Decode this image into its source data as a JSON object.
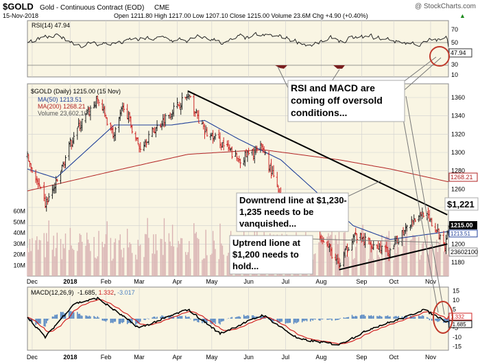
{
  "header": {
    "symbol": "$GOLD",
    "name": "Gold - Continuous Contract (EOD)",
    "exchange": "CME",
    "watermark": "@ StockCharts.com",
    "date": "15-Nov-2018",
    "ohlc": "Open 1211.80  High 1217.00  Low 1207.10  Close 1215.00  Volume 23.6M  Chg +4.90 (+0.40%)",
    "ohlc_arrow": "▲"
  },
  "rsi_panel": {
    "label": "RSI(14) 47.94",
    "current": "47.94",
    "levels": [
      "70",
      "50",
      "30",
      "10"
    ]
  },
  "price_panel": {
    "legend_main": "$GOLD (Daily) 1215.00 (15 Nov)",
    "legend_ma50": "MA(50) 1213.51",
    "legend_ma200": "MA(200) 1268.21",
    "legend_volume": "Volume 23,602,100",
    "price_ticks": [
      "1360",
      "1340",
      "1320",
      "1300",
      "1280",
      "1260",
      "1240",
      "1220",
      "1200",
      "1180"
    ],
    "volume_ticks": [
      "60M",
      "50M",
      "40M",
      "30M",
      "20M",
      "10M"
    ],
    "badge_ma200": "1268.21",
    "badge_close": "1215.00",
    "badge_ma50": "1213.51",
    "badge_volume": "23602100"
  },
  "macd_panel": {
    "label_name": "MACD(12,26,9)",
    "label_macd": "-1.685",
    "label_signal": "1.332",
    "label_hist": "-3.017",
    "ticks": [
      "15",
      "10",
      "5",
      "0",
      "-5",
      "-10",
      "-15"
    ],
    "badge_signal": "1.332",
    "badge_macd": "-1.685"
  },
  "annotations": {
    "rsi_macd": "RSI and MACD are coming off oversold conditions...",
    "downtrend": "Downtrend line at $1,230-1,235 needs to be vanquished...",
    "uptrend": "Uptrend lione at $1,200 needs to hold...",
    "price_call": "$1,221"
  },
  "x_axis": [
    "Dec",
    "2018",
    "Feb",
    "Mar",
    "Apr",
    "May",
    "Jun",
    "Jul",
    "Aug",
    "Sep",
    "Oct",
    "Nov"
  ],
  "colors": {
    "up_bar": "#222222",
    "down_bar": "#cc2222",
    "ma50": "#1f3f99",
    "ma200": "#b22222",
    "volume": "#d9b3b3",
    "panel_bg": "#f9f5e3",
    "grid": "#cfcfcf",
    "macd_line": "#000000",
    "signal_line": "#d22222",
    "histogram": "#4a7fc1",
    "rsi_line": "#222222"
  },
  "chart_data": {
    "type": "candlestick",
    "title": "$GOLD Gold - Continuous Contract (EOD) CME",
    "x_range": [
      "2017-11-27",
      "2018-11-16"
    ],
    "ylim": [
      1165,
      1375
    ],
    "price_anchors": [
      {
        "date": "2017-11-27",
        "close": 1295
      },
      {
        "date": "2017-12-12",
        "close": 1243
      },
      {
        "date": "2017-12-21",
        "close": 1265
      },
      {
        "date": "2018-01-05",
        "close": 1320
      },
      {
        "date": "2018-01-25",
        "close": 1358
      },
      {
        "date": "2018-02-08",
        "close": 1318
      },
      {
        "date": "2018-02-16",
        "close": 1352
      },
      {
        "date": "2018-03-01",
        "close": 1305
      },
      {
        "date": "2018-03-14",
        "close": 1325
      },
      {
        "date": "2018-03-28",
        "close": 1345
      },
      {
        "date": "2018-04-11",
        "close": 1362
      },
      {
        "date": "2018-04-25",
        "close": 1322
      },
      {
        "date": "2018-05-08",
        "close": 1312
      },
      {
        "date": "2018-05-23",
        "close": 1292
      },
      {
        "date": "2018-06-13",
        "close": 1305
      },
      {
        "date": "2018-06-28",
        "close": 1250
      },
      {
        "date": "2018-07-13",
        "close": 1240
      },
      {
        "date": "2018-07-27",
        "close": 1222
      },
      {
        "date": "2018-08-16",
        "close": 1175
      },
      {
        "date": "2018-08-28",
        "close": 1210
      },
      {
        "date": "2018-09-13",
        "close": 1200
      },
      {
        "date": "2018-09-28",
        "close": 1190
      },
      {
        "date": "2018-10-12",
        "close": 1222
      },
      {
        "date": "2018-10-26",
        "close": 1235
      },
      {
        "date": "2018-11-13",
        "close": 1200
      },
      {
        "date": "2018-11-15",
        "close": 1215
      }
    ],
    "ma50_anchors": [
      {
        "date": "2017-11-27",
        "value": 1282
      },
      {
        "date": "2017-12-21",
        "value": 1272
      },
      {
        "date": "2018-02-08",
        "value": 1330
      },
      {
        "date": "2018-03-28",
        "value": 1330
      },
      {
        "date": "2018-04-25",
        "value": 1335
      },
      {
        "date": "2018-05-23",
        "value": 1315
      },
      {
        "date": "2018-06-28",
        "value": 1292
      },
      {
        "date": "2018-07-27",
        "value": 1258
      },
      {
        "date": "2018-08-28",
        "value": 1220
      },
      {
        "date": "2018-09-28",
        "value": 1205
      },
      {
        "date": "2018-11-15",
        "value": 1213.51
      }
    ],
    "ma200_anchors": [
      {
        "date": "2017-11-27",
        "value": 1258
      },
      {
        "date": "2018-02-08",
        "value": 1280
      },
      {
        "date": "2018-04-11",
        "value": 1298
      },
      {
        "date": "2018-06-13",
        "value": 1303
      },
      {
        "date": "2018-08-16",
        "value": 1292
      },
      {
        "date": "2018-09-28",
        "value": 1282
      },
      {
        "date": "2018-11-15",
        "value": 1268.21
      }
    ],
    "downtrend_line": [
      {
        "date": "2018-04-11",
        "price": 1367
      },
      {
        "date": "2018-11-15",
        "price": 1232
      }
    ],
    "uptrend_line": [
      {
        "date": "2018-08-16",
        "price": 1172
      },
      {
        "date": "2018-11-15",
        "price": 1200
      }
    ],
    "volume_ylim": [
      0,
      70
    ],
    "volume_unit": "M",
    "rsi_ylim": [
      0,
      90
    ],
    "rsi_last": 47.94,
    "macd_ylim": [
      -17,
      17
    ],
    "macd_last": {
      "macd": -1.685,
      "signal": 1.332,
      "histogram": -3.017
    },
    "macd_anchors": [
      {
        "date": "2017-11-27",
        "value": 1
      },
      {
        "date": "2017-12-12",
        "value": -10
      },
      {
        "date": "2018-01-05",
        "value": 8
      },
      {
        "date": "2018-01-25",
        "value": 11
      },
      {
        "date": "2018-03-01",
        "value": -5
      },
      {
        "date": "2018-04-11",
        "value": 5
      },
      {
        "date": "2018-05-08",
        "value": -8
      },
      {
        "date": "2018-06-13",
        "value": 2
      },
      {
        "date": "2018-07-13",
        "value": -11
      },
      {
        "date": "2018-08-16",
        "value": -14
      },
      {
        "date": "2018-09-13",
        "value": -5
      },
      {
        "date": "2018-10-12",
        "value": 1
      },
      {
        "date": "2018-10-26",
        "value": 5
      },
      {
        "date": "2018-11-15",
        "value": -1.685
      }
    ],
    "x_tick_dates": [
      "2017-12-01",
      "2018-01-02",
      "2018-02-01",
      "2018-03-01",
      "2018-04-02",
      "2018-05-01",
      "2018-06-01",
      "2018-07-02",
      "2018-08-01",
      "2018-09-04",
      "2018-10-01",
      "2018-11-01"
    ]
  }
}
